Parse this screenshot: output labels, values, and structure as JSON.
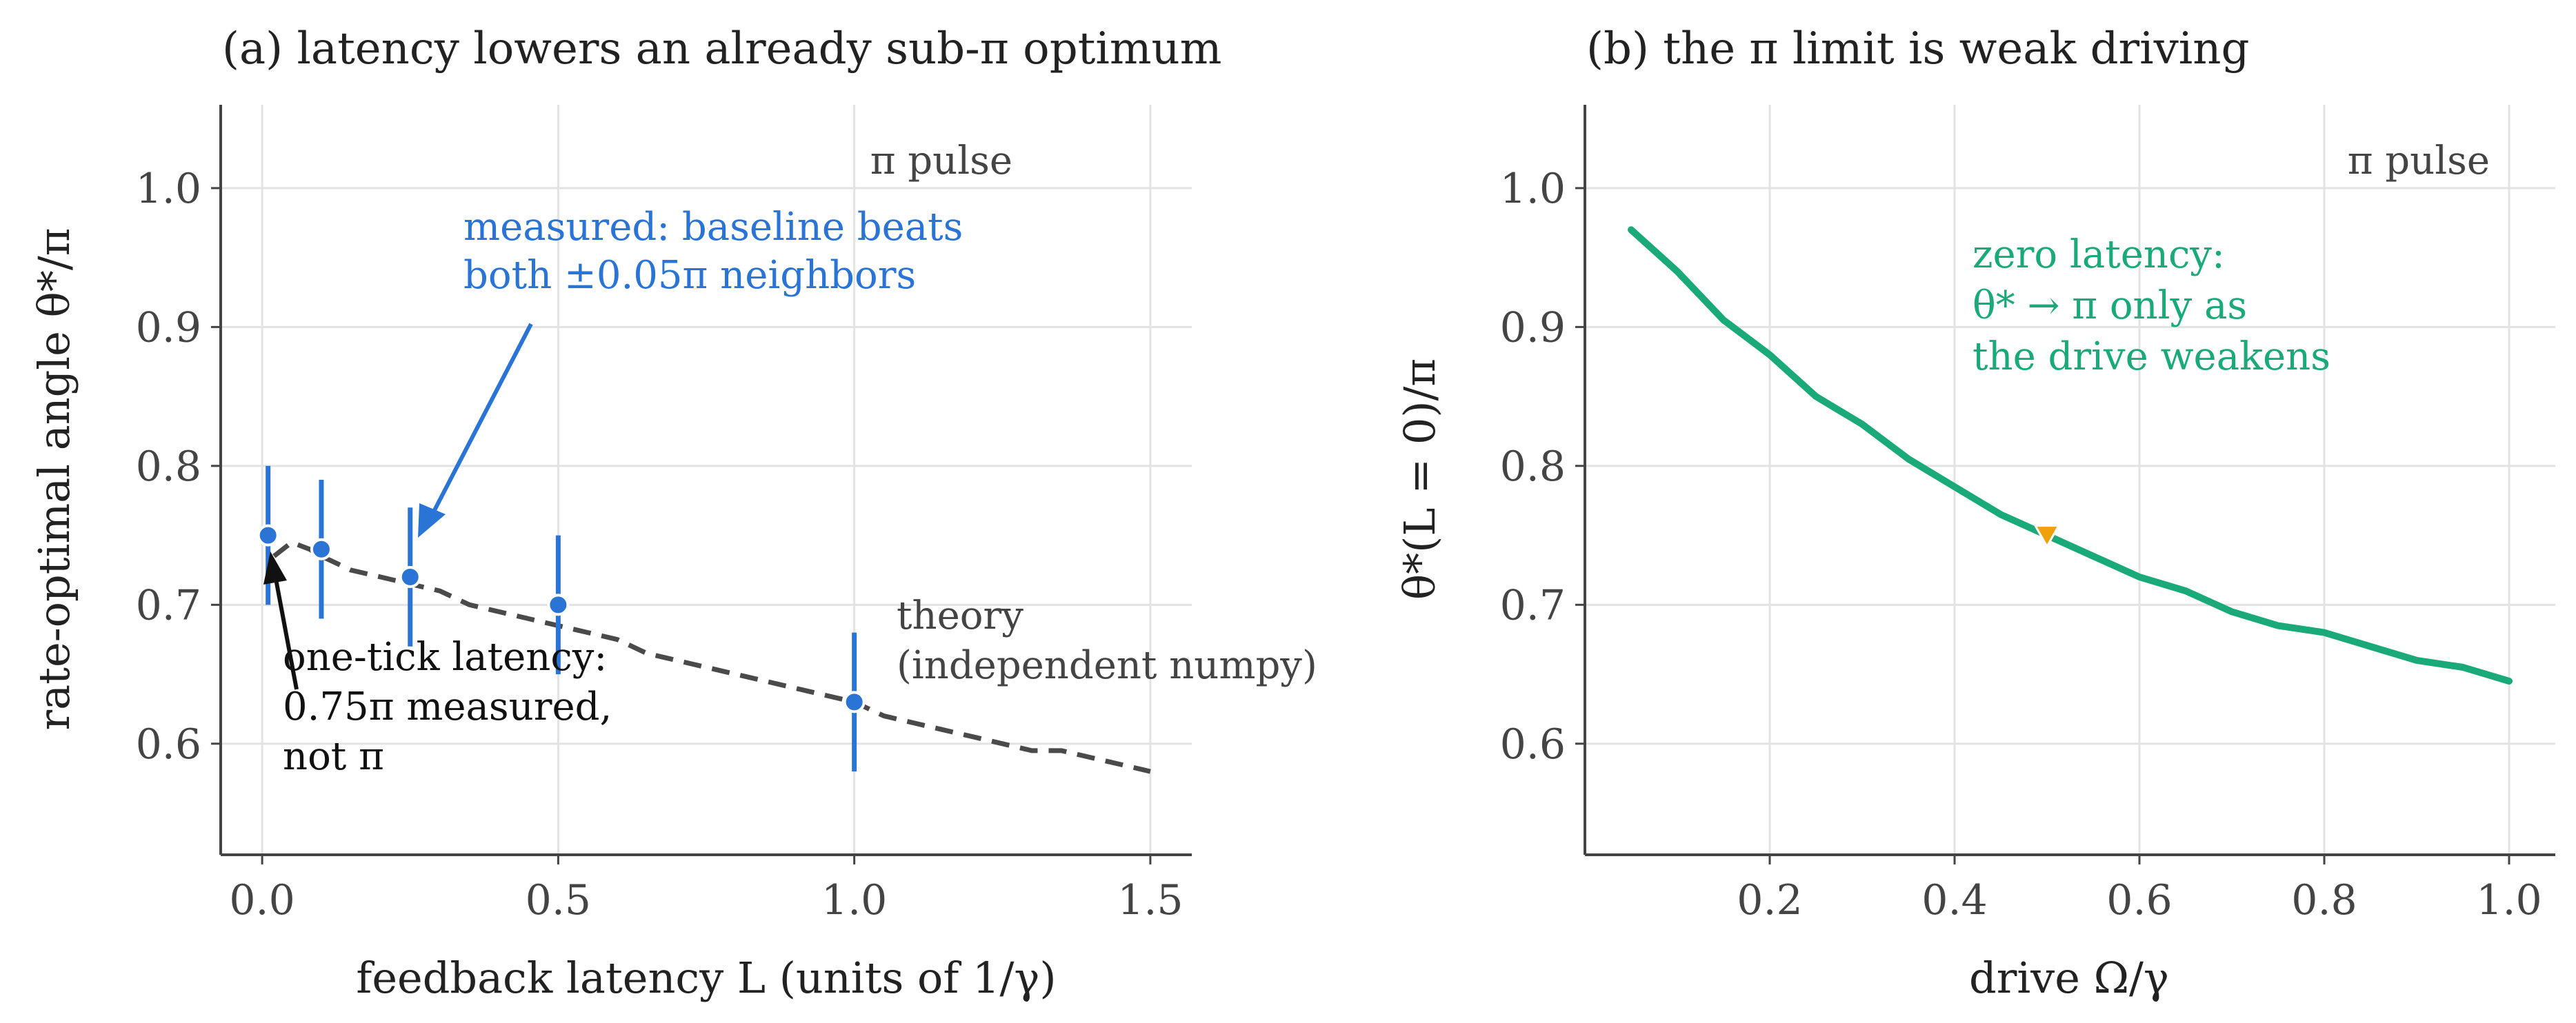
{
  "colors": {
    "measured": "#2a74d6",
    "theory": "#4a4a4a",
    "zero_latency": "#1aaa7a",
    "marker": "#f0a00a",
    "grid": "#e3e3e3",
    "axis": "#444444",
    "text": "#222222"
  },
  "chart_data": [
    {
      "type": "scatter",
      "title": "(a)  latency lowers an already sub-π optimum",
      "xlabel": "feedback latency L (units of 1/γ)",
      "ylabel": "rate-optimal angle θ*/π",
      "xlim": [
        -0.07,
        1.57
      ],
      "ylim": [
        0.52,
        1.06
      ],
      "grid": true,
      "xticks": [
        0.0,
        0.5,
        1.0,
        1.5
      ],
      "xtick_labels": [
        "0.0",
        "0.5",
        "1.0",
        "1.5"
      ],
      "yticks": [
        0.6,
        0.7,
        0.8,
        0.9,
        1.0
      ],
      "ytick_labels": [
        "0.6",
        "0.7",
        "0.8",
        "0.9",
        "1.0"
      ],
      "series": [
        {
          "kind": "points_with_errorbars",
          "x": [
            0.01,
            0.1,
            0.25,
            0.5,
            1.0
          ],
          "y": [
            0.75,
            0.74,
            0.72,
            0.7,
            0.63
          ],
          "err": [
            0.05,
            0.05,
            0.05,
            0.05,
            0.05
          ]
        },
        {
          "kind": "dashed_line",
          "x": [
            0.02,
            0.05,
            0.08,
            0.1,
            0.15,
            0.2,
            0.25,
            0.3,
            0.35,
            0.4,
            0.45,
            0.5,
            0.55,
            0.6,
            0.65,
            0.7,
            0.75,
            0.8,
            0.85,
            0.9,
            0.95,
            1.0,
            1.05,
            1.1,
            1.15,
            1.2,
            1.25,
            1.3,
            1.35,
            1.4,
            1.45,
            1.5
          ],
          "y": [
            0.735,
            0.745,
            0.74,
            0.735,
            0.725,
            0.72,
            0.715,
            0.71,
            0.7,
            0.695,
            0.69,
            0.685,
            0.68,
            0.675,
            0.665,
            0.66,
            0.655,
            0.65,
            0.645,
            0.64,
            0.635,
            0.63,
            0.62,
            0.615,
            0.61,
            0.605,
            0.6,
            0.595,
            0.595,
            0.59,
            0.585,
            0.58
          ]
        }
      ],
      "reference_line": {
        "y": 1.0,
        "label": "π pulse"
      },
      "annotations": {
        "measured": [
          "measured: baseline beats",
          "both ±0.05π neighbors"
        ],
        "theory": [
          "theory",
          "(independent numpy)"
        ],
        "latency": [
          "one-tick latency:",
          "0.75π measured,",
          "not π"
        ]
      }
    },
    {
      "type": "line",
      "title": "(b)  the π limit is weak driving",
      "xlabel": "drive Ω/γ",
      "ylabel": "θ*(L = 0)/π",
      "xlim": [
        0.0,
        1.05
      ],
      "ylim": [
        0.52,
        1.06
      ],
      "grid": true,
      "xticks": [
        0.2,
        0.4,
        0.6,
        0.8,
        1.0
      ],
      "xtick_labels": [
        "0.2",
        "0.4",
        "0.6",
        "0.8",
        "1.0"
      ],
      "yticks": [
        0.6,
        0.7,
        0.8,
        0.9,
        1.0
      ],
      "ytick_labels": [
        "0.6",
        "0.7",
        "0.8",
        "0.9",
        "1.0"
      ],
      "series": [
        {
          "x": [
            0.05,
            0.1,
            0.15,
            0.2,
            0.25,
            0.3,
            0.35,
            0.4,
            0.45,
            0.5,
            0.55,
            0.6,
            0.65,
            0.7,
            0.75,
            0.8,
            0.85,
            0.9,
            0.95,
            1.0
          ],
          "y": [
            0.97,
            0.94,
            0.905,
            0.88,
            0.85,
            0.83,
            0.805,
            0.785,
            0.765,
            0.75,
            0.735,
            0.72,
            0.71,
            0.695,
            0.685,
            0.68,
            0.67,
            0.66,
            0.655,
            0.645
          ]
        }
      ],
      "marker_point": {
        "x": 0.5,
        "y": 0.75
      },
      "reference_line": {
        "y": 1.0,
        "label": "π pulse"
      },
      "annotations": {
        "zero_latency": [
          "zero latency:",
          "θ* → π only as",
          "the drive weakens"
        ]
      }
    }
  ]
}
